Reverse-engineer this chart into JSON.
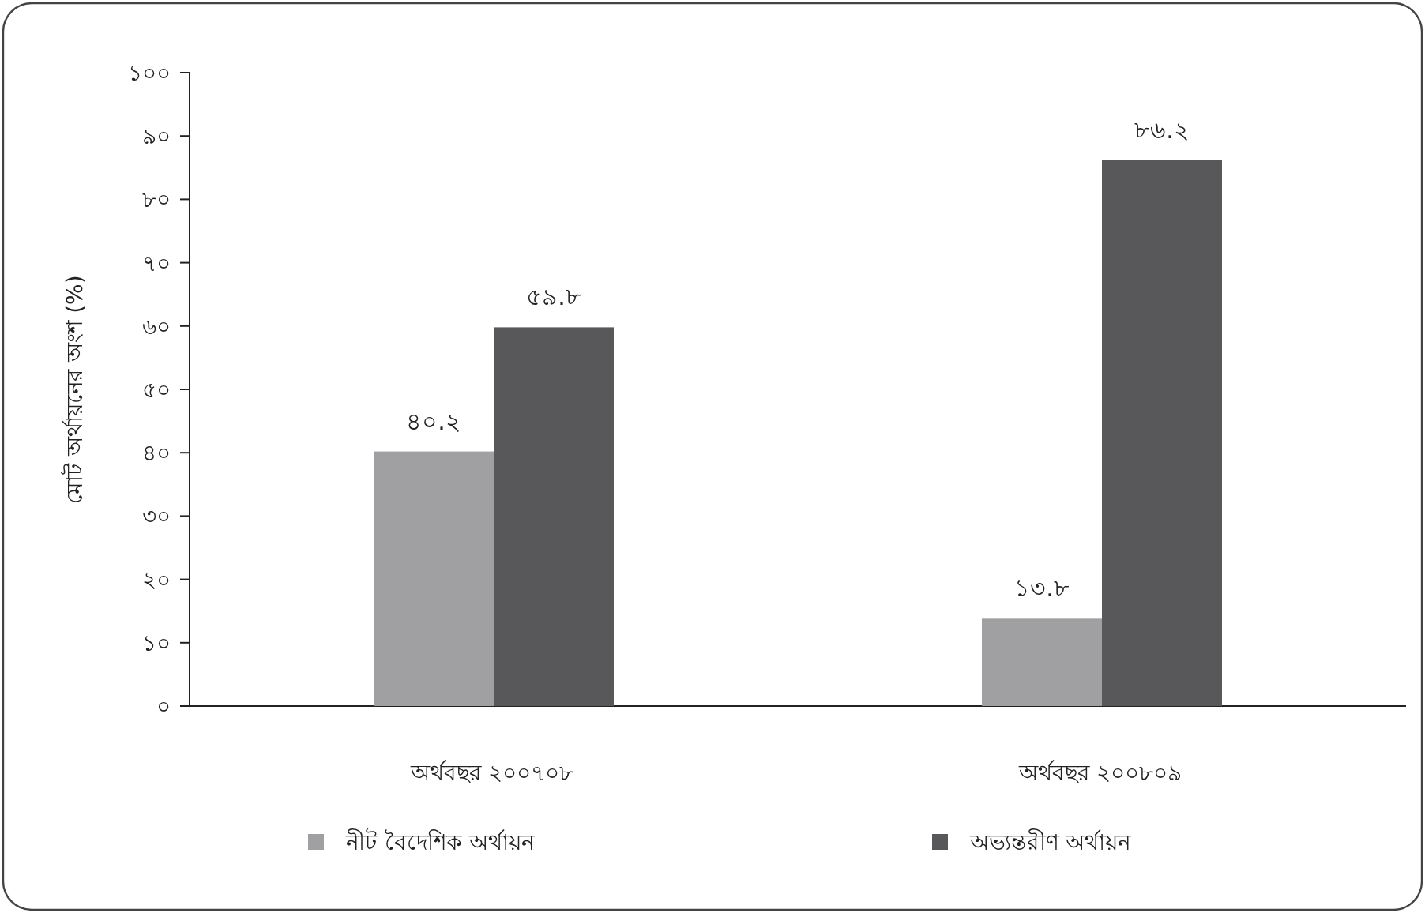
{
  "chart_data": {
    "type": "bar",
    "ylabel": "মোট অর্থায়নের অংশ (%)",
    "categories": [
      "অর্থবছর ২০০৭০৮",
      "অর্থবছর ২০০৮০৯"
    ],
    "series": [
      {
        "name": "নীট বৈদেশিক অর্থায়ন",
        "color": "#a0a0a2",
        "values": [
          40.2,
          13.8
        ],
        "value_labels": [
          "৪০.২",
          "১৩.৮"
        ]
      },
      {
        "name": "অভ্যন্তরীণ অর্থায়ন",
        "color": "#58585a",
        "values": [
          59.8,
          86.2
        ],
        "value_labels": [
          "৫৯.৮",
          "৮৬.২"
        ]
      }
    ],
    "ylim": [
      0,
      100
    ],
    "yticks": [
      {
        "value": 0,
        "label": "০"
      },
      {
        "value": 10,
        "label": "১০"
      },
      {
        "value": 20,
        "label": "২০"
      },
      {
        "value": 30,
        "label": "৩০"
      },
      {
        "value": 40,
        "label": "৪০"
      },
      {
        "value": 50,
        "label": "৫০"
      },
      {
        "value": 60,
        "label": "৬০"
      },
      {
        "value": 70,
        "label": "৭০"
      },
      {
        "value": 80,
        "label": "৮০"
      },
      {
        "value": 90,
        "label": "৯০"
      },
      {
        "value": 100,
        "label": "১০০"
      }
    ],
    "grid": false,
    "legend": "bottom"
  }
}
